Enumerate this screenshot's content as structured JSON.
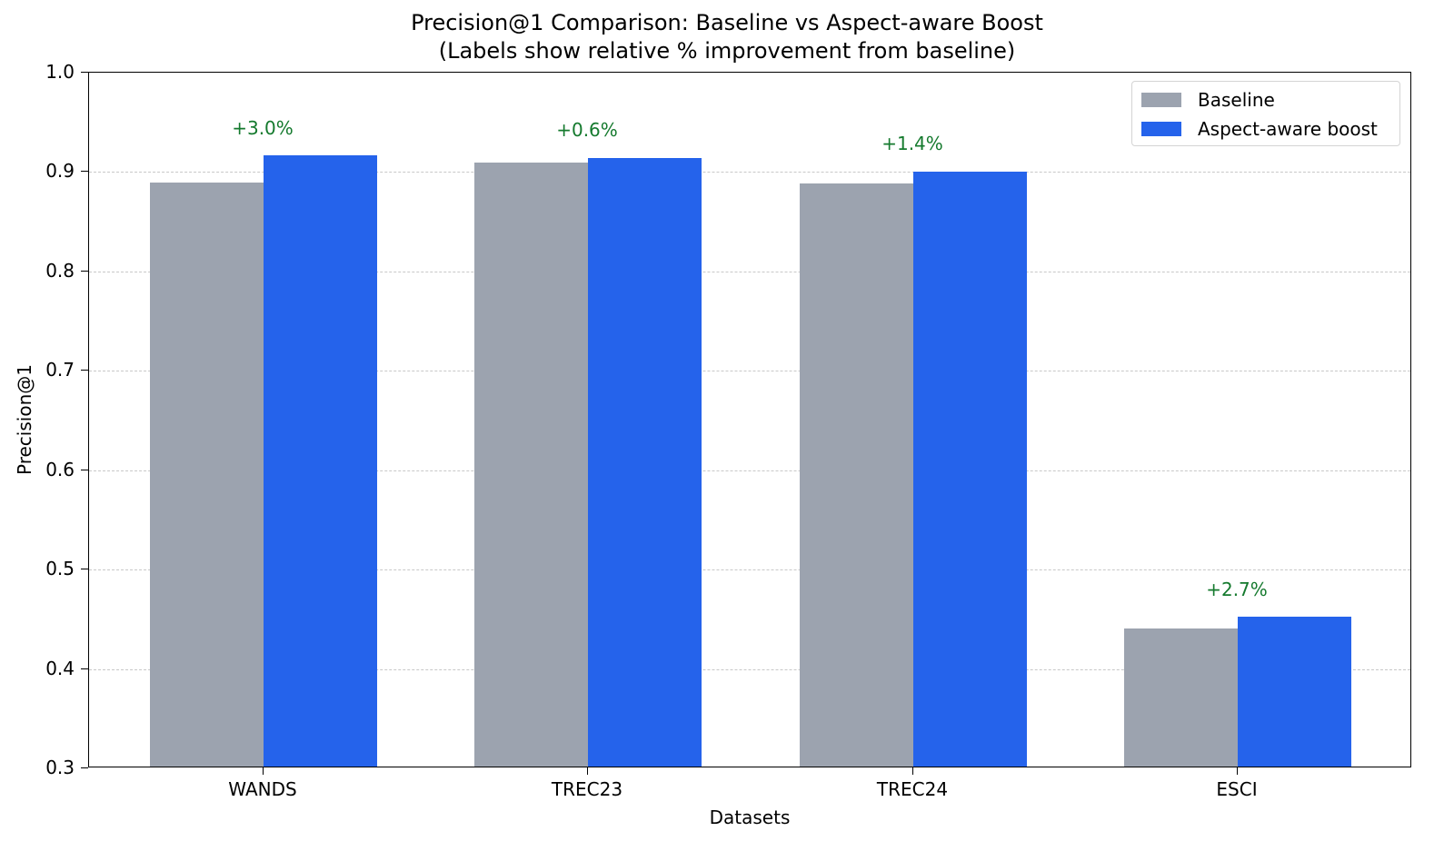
{
  "chart_data": {
    "type": "bar",
    "title": "Precision@1 Comparison: Baseline vs Aspect-aware Boost",
    "subtitle": "(Labels show relative % improvement from baseline)",
    "xlabel": "Datasets",
    "ylabel": "Precision@1",
    "ylim": [
      0.3,
      1.0
    ],
    "yticks": [
      "0.3",
      "0.4",
      "0.5",
      "0.6",
      "0.7",
      "0.8",
      "0.9",
      "1.0"
    ],
    "grid": "y-dashed",
    "legend_position": "upper right",
    "categories": [
      "WANDS",
      "TREC23",
      "TREC24",
      "ESCI"
    ],
    "series": [
      {
        "name": "Baseline",
        "color": "#9ca3af",
        "values": [
          0.889,
          0.909,
          0.888,
          0.44
        ]
      },
      {
        "name": "Aspect-aware boost",
        "color": "#2563eb",
        "values": [
          0.916,
          0.914,
          0.9,
          0.452
        ]
      }
    ],
    "annotations": [
      "+3.0%",
      "+0.6%",
      "+1.4%",
      "+2.7%"
    ],
    "annotation_color": "#157a2e"
  }
}
